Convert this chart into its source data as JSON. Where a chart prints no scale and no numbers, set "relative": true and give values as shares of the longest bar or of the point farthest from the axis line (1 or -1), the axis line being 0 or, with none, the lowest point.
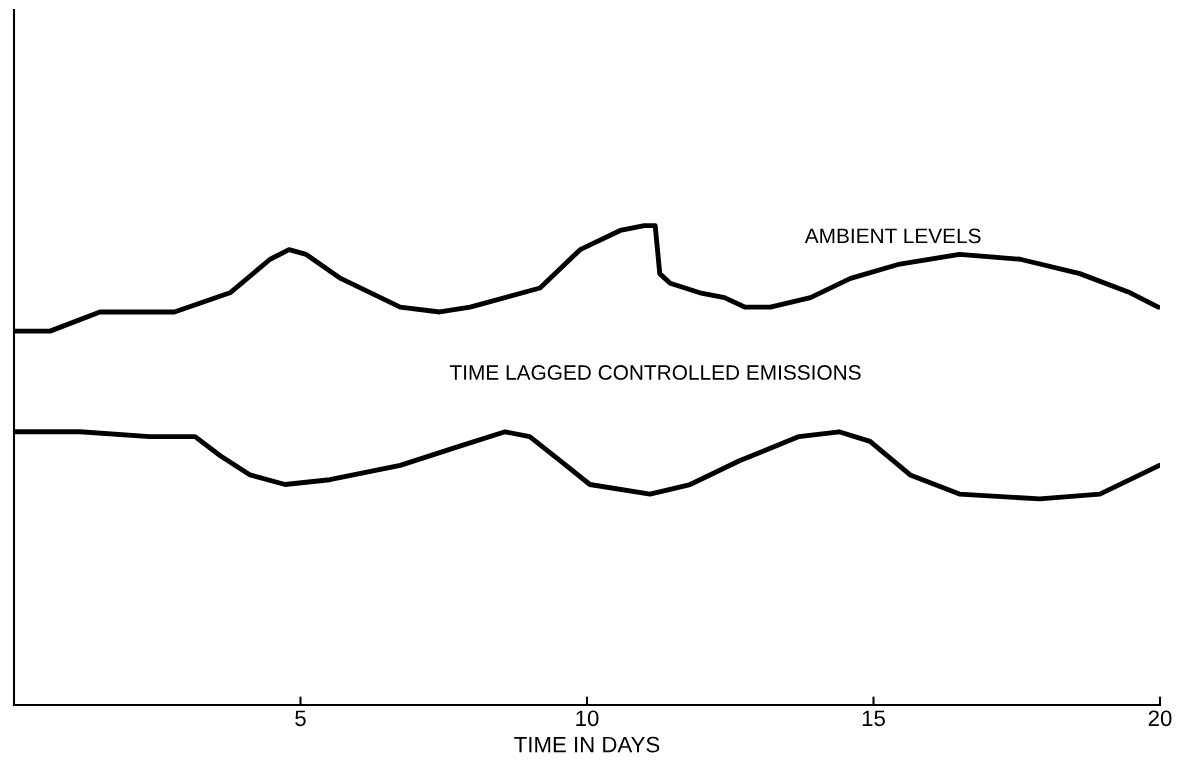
{
  "chart_data": {
    "type": "line",
    "relative": true,
    "xlabel": "TIME IN DAYS",
    "xlim": [
      0,
      20
    ],
    "xticks": [
      5,
      10,
      15,
      20
    ],
    "grid": false,
    "legend": false,
    "marker": "none",
    "line_style": "solid",
    "series": [
      {
        "name": "AMBIENT LEVELS",
        "color": "#000000",
        "x": [
          0,
          0.63,
          1.5,
          2.1,
          2.8,
          3.77,
          4.47,
          4.8,
          5.1,
          5.7,
          6.74,
          7.43,
          7.96,
          9.18,
          9.88,
          10.58,
          11.0,
          11.19,
          11.27,
          11.45,
          11.97,
          12.4,
          12.76,
          13.2,
          13.9,
          14.6,
          15.46,
          16.5,
          17.56,
          18.6,
          19.48,
          19.97
        ],
        "values": [
          0.78,
          0.78,
          0.82,
          0.82,
          0.82,
          0.86,
          0.93,
          0.95,
          0.94,
          0.89,
          0.83,
          0.82,
          0.83,
          0.87,
          0.95,
          0.99,
          1.0,
          1.0,
          0.9,
          0.88,
          0.86,
          0.85,
          0.83,
          0.83,
          0.85,
          0.89,
          0.92,
          0.94,
          0.93,
          0.9,
          0.86,
          0.83
        ]
      },
      {
        "name": "TIME LAGGED CONTROLLED EMISSIONS",
        "color": "#000000",
        "x": [
          0,
          1.15,
          2.37,
          3.16,
          3.6,
          4.12,
          4.73,
          5.51,
          6.74,
          7.78,
          8.57,
          9.0,
          9.53,
          10.05,
          11.1,
          11.8,
          12.67,
          13.7,
          14.4,
          14.94,
          15.64,
          16.5,
          17.9,
          18.95,
          19.99
        ],
        "values": [
          0.57,
          0.57,
          0.56,
          0.56,
          0.52,
          0.48,
          0.46,
          0.47,
          0.5,
          0.54,
          0.57,
          0.56,
          0.51,
          0.46,
          0.44,
          0.46,
          0.51,
          0.56,
          0.57,
          0.55,
          0.48,
          0.44,
          0.43,
          0.44,
          0.5
        ]
      }
    ]
  }
}
